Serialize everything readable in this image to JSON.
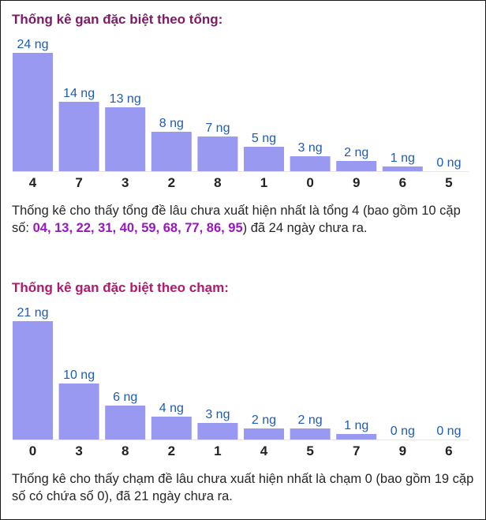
{
  "section1": {
    "title": "Thống kê gan đặc biệt theo tổng:",
    "summary_before": "Thống kê cho thấy tổng đề lâu chưa xuất hiện nhất là tổng 4 (bao gồm 10 cặp số: ",
    "pairs": "04, 13, 22, 31, 40, 59, 68, 77, 86, 95",
    "summary_after": ") đã 24 ngày chưa ra."
  },
  "section2": {
    "title": "Thống kê gan đặc biệt theo chạm:",
    "summary": "Thống kê cho thấy chạm đề lâu chưa xuất hiện nhất là chạm 0 (bao gồm 19 cặp số có chứa số 0), đã 21 ngày chưa ra."
  },
  "colors": {
    "bar": "#9999f2",
    "value_label": "#1e5bb5",
    "title": "#9b1a6f",
    "pairs": "#9a16c2"
  },
  "chart_data": [
    {
      "type": "bar",
      "categories": [
        "4",
        "7",
        "3",
        "2",
        "8",
        "1",
        "0",
        "9",
        "6",
        "5"
      ],
      "values": [
        24,
        14,
        13,
        8,
        7,
        5,
        3,
        2,
        1,
        0
      ],
      "value_labels": [
        "24 ng",
        "14 ng",
        "13 ng",
        "8 ng",
        "7 ng",
        "5 ng",
        "3 ng",
        "2 ng",
        "1 ng",
        "0 ng"
      ],
      "ylim": [
        0,
        24
      ]
    },
    {
      "type": "bar",
      "categories": [
        "0",
        "3",
        "8",
        "2",
        "1",
        "4",
        "5",
        "7",
        "9",
        "6"
      ],
      "values": [
        21,
        10,
        6,
        4,
        3,
        2,
        2,
        1,
        0,
        0
      ],
      "value_labels": [
        "21 ng",
        "10 ng",
        "6 ng",
        "4 ng",
        "3 ng",
        "2 ng",
        "2 ng",
        "1 ng",
        "0 ng",
        "0 ng"
      ],
      "ylim": [
        0,
        21
      ]
    }
  ]
}
